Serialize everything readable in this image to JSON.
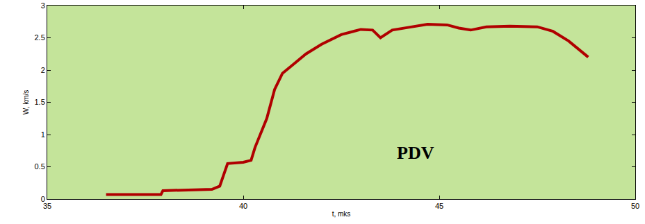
{
  "chart_data": {
    "type": "line",
    "x_label": "t, mks",
    "y_label": "W, km/s",
    "annotations": [
      {
        "text": "PDV",
        "x": 44.4,
        "y": 0.72
      }
    ],
    "x": [
      36.5,
      37.9,
      37.95,
      39.2,
      39.4,
      39.6,
      40.0,
      40.2,
      40.3,
      40.5,
      40.6,
      40.8,
      41.0,
      41.3,
      41.6,
      42.0,
      42.5,
      43.0,
      43.3,
      43.5,
      43.8,
      44.2,
      44.7,
      45.2,
      45.5,
      45.8,
      46.2,
      46.8,
      47.5,
      47.9,
      48.3,
      48.8
    ],
    "values": [
      0.07,
      0.07,
      0.13,
      0.15,
      0.2,
      0.55,
      0.57,
      0.6,
      0.8,
      1.1,
      1.25,
      1.7,
      1.95,
      2.1,
      2.25,
      2.4,
      2.55,
      2.63,
      2.62,
      2.5,
      2.62,
      2.66,
      2.71,
      2.7,
      2.65,
      2.62,
      2.67,
      2.68,
      2.67,
      2.6,
      2.45,
      2.2
    ],
    "color": "#b00000",
    "line_style": "solid",
    "xlim": [
      35,
      50
    ],
    "xticks": [
      35,
      40,
      45,
      50
    ],
    "ylim": [
      0,
      3
    ],
    "yticks": [
      0,
      0.5,
      1,
      1.5,
      2,
      2.5,
      3
    ],
    "grid": false
  }
}
